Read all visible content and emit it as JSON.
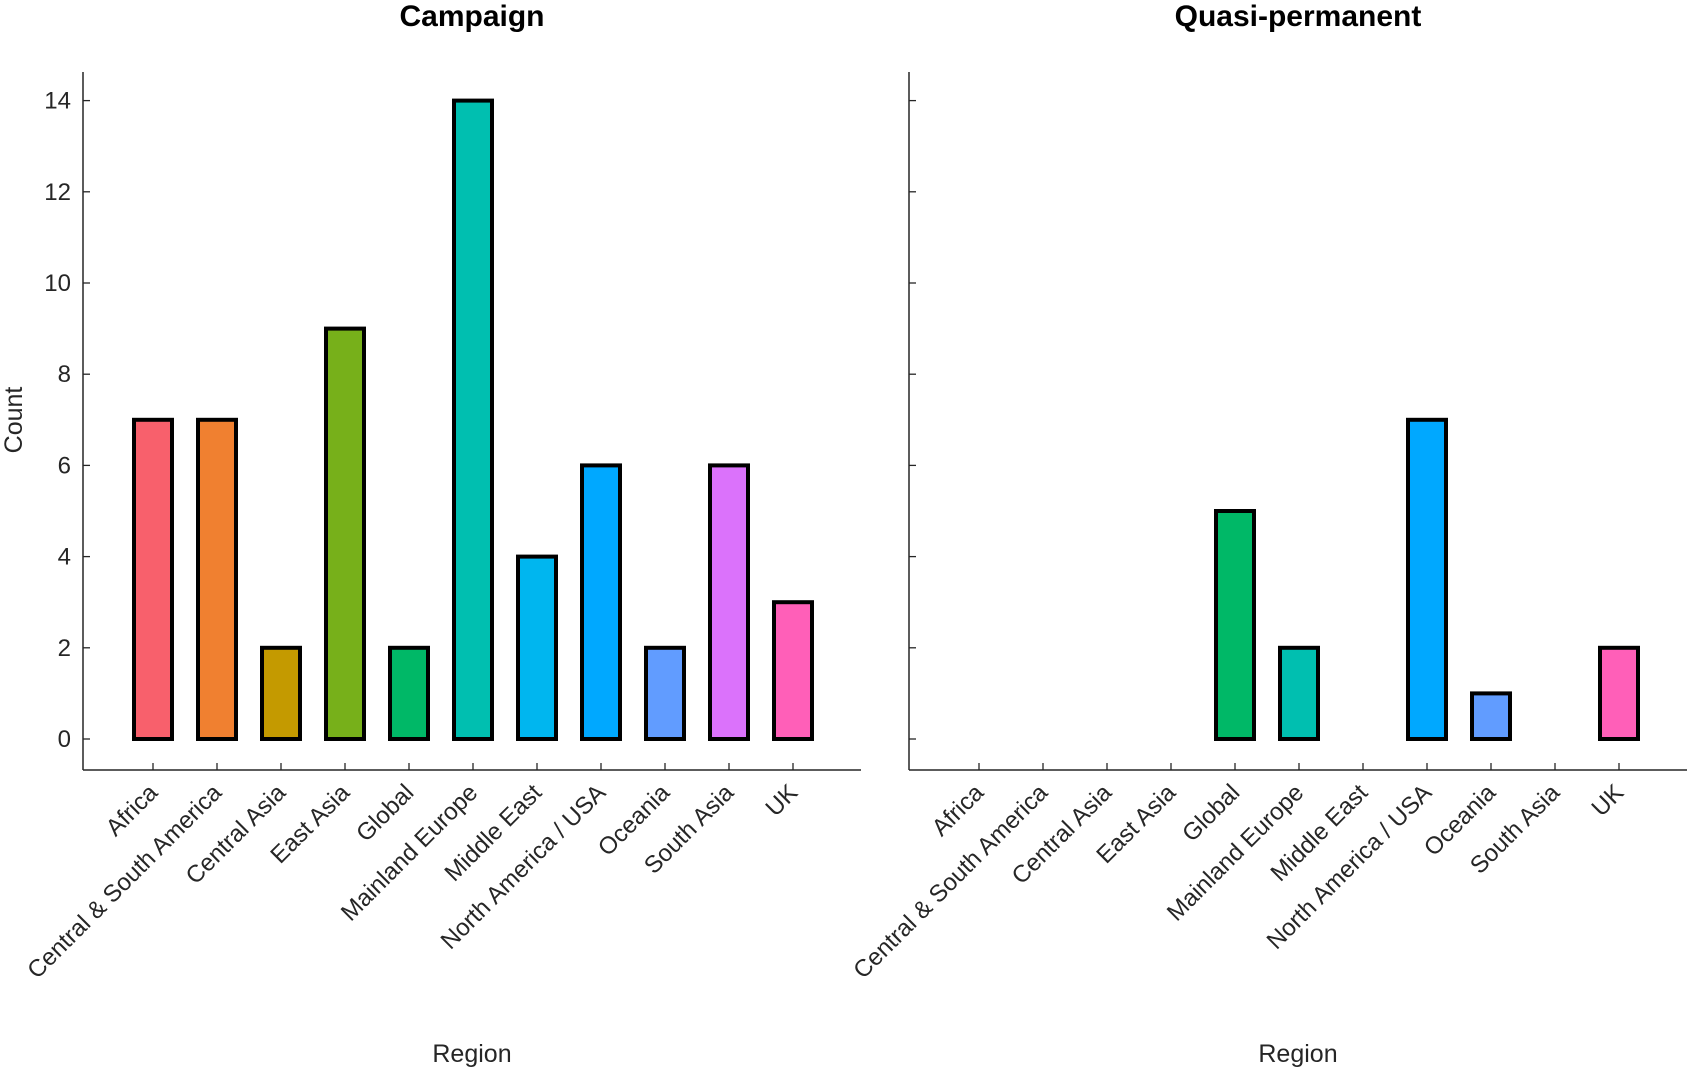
{
  "chart_data": [
    {
      "type": "bar",
      "title": "Campaign",
      "xlabel": "Region",
      "ylabel": "Count",
      "ylim": [
        0,
        14.6
      ],
      "yticks": [
        0,
        2,
        4,
        6,
        8,
        10,
        12,
        14
      ],
      "show_y_tick_labels": true,
      "categories": [
        "Africa",
        "Central & South America",
        "Central Asia",
        "East Asia",
        "Global",
        "Mainland Europe",
        "Middle East",
        "North America / USA",
        "Oceania",
        "South Asia",
        "UK"
      ],
      "values": [
        7,
        7,
        2,
        9,
        2,
        14,
        4,
        6,
        2,
        6,
        3
      ],
      "colors": [
        "#F8606C",
        "#F08030",
        "#C49A00",
        "#77B01A",
        "#00B867",
        "#00BFB0",
        "#00B6EF",
        "#00A8FF",
        "#619CFF",
        "#DB72FB",
        "#FF5FB8"
      ],
      "grid": false
    },
    {
      "type": "bar",
      "title": "Quasi-permanent",
      "xlabel": "Region",
      "ylabel": "",
      "ylim": [
        0,
        14.6
      ],
      "yticks": [
        0,
        2,
        4,
        6,
        8,
        10,
        12,
        14
      ],
      "show_y_tick_labels": false,
      "categories": [
        "Africa",
        "Central & South America",
        "Central Asia",
        "East Asia",
        "Global",
        "Mainland Europe",
        "Middle East",
        "North America / USA",
        "Oceania",
        "South Asia",
        "UK"
      ],
      "values": [
        0,
        0,
        0,
        0,
        5,
        2,
        0,
        7,
        1,
        0,
        2
      ],
      "colors": [
        "#F8606C",
        "#F08030",
        "#C49A00",
        "#77B01A",
        "#00B867",
        "#00BFB0",
        "#00B6EF",
        "#00A8FF",
        "#619CFF",
        "#DB72FB",
        "#FF5FB8"
      ],
      "grid": false
    }
  ]
}
